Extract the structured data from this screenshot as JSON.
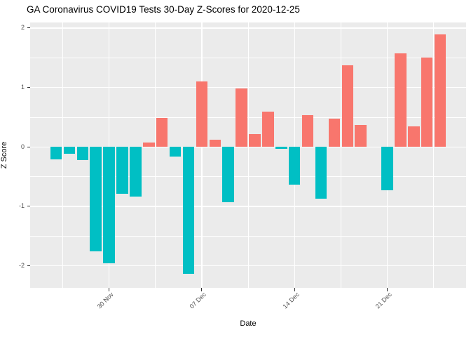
{
  "page": {
    "title": "GA Coronavirus COVID19 Tests 30-Day Z-Scores for 2020-12-25"
  },
  "chart_data": {
    "type": "bar",
    "title": "GA Coronavirus COVID19 Tests 30-Day Z-Scores for 2020-12-25",
    "xlabel": "Date",
    "ylabel": "Z Score",
    "x": [
      "2020-11-26",
      "2020-11-27",
      "2020-11-28",
      "2020-11-29",
      "2020-11-30",
      "2020-12-01",
      "2020-12-02",
      "2020-12-03",
      "2020-12-04",
      "2020-12-05",
      "2020-12-06",
      "2020-12-07",
      "2020-12-08",
      "2020-12-09",
      "2020-12-10",
      "2020-12-11",
      "2020-12-12",
      "2020-12-13",
      "2020-12-14",
      "2020-12-15",
      "2020-12-16",
      "2020-12-17",
      "2020-12-18",
      "2020-12-19",
      "2020-12-20",
      "2020-12-21",
      "2020-12-22",
      "2020-12-23",
      "2020-12-24",
      "2020-12-25"
    ],
    "values": [
      -0.21,
      -0.12,
      -0.22,
      -1.76,
      -1.96,
      -0.79,
      -0.84,
      0.07,
      0.49,
      -0.16,
      -2.13,
      1.1,
      0.12,
      -0.93,
      0.98,
      0.22,
      0.59,
      -0.03,
      -0.64,
      0.54,
      -0.87,
      0.48,
      1.37,
      0.37,
      0.0,
      -0.73,
      1.57,
      0.35,
      1.5,
      1.89
    ],
    "x_ticks": [
      {
        "label": "30 Nov",
        "day_index": 4
      },
      {
        "label": "07 Dec",
        "day_index": 11
      },
      {
        "label": "14 Dec",
        "day_index": 18
      },
      {
        "label": "21 Dec",
        "day_index": 25
      }
    ],
    "y_ticks": [
      2,
      1,
      0,
      -1,
      -2
    ],
    "y_minor_ticks": [
      1.5,
      0.5,
      -0.5,
      -1.5
    ],
    "ylim": [
      -2.37,
      2.09
    ],
    "colors": {
      "positive_bar": "#F8766D",
      "negative_bar": "#00BFC4",
      "panel_background": "#EBEBEB",
      "gridline": "#FFFFFF",
      "axis_text": "#4D4D4D",
      "tick_mark": "#333333",
      "title_text": "#000000"
    },
    "legend": "none",
    "grid": true
  }
}
